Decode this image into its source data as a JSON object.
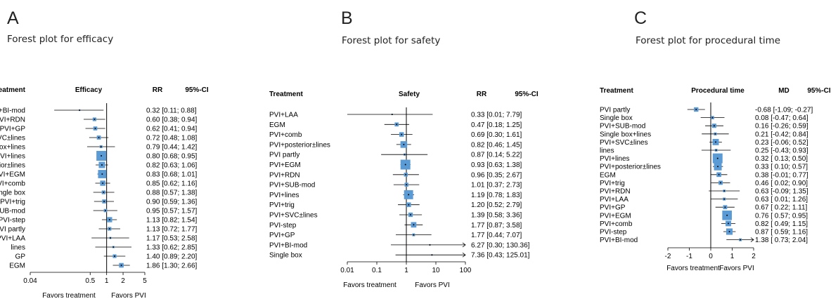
{
  "panels": [
    {
      "letter": "A",
      "title": "Forest plot for efficacy"
    },
    {
      "letter": "B",
      "title": "Forest plot for safety"
    },
    {
      "letter": "C",
      "title": "Forest plot for procedural time"
    }
  ],
  "chart_data": [
    {
      "type": "forest",
      "headers": {
        "treatment": "Treatment",
        "outcome": "Efficacy",
        "measure": "RR",
        "ci": "95%-CI"
      },
      "scale": "log",
      "xlim": [
        0.04,
        5
      ],
      "ticks": [
        0.04,
        0.5,
        1,
        2,
        5
      ],
      "tick_labels": [
        "0.04",
        "0.5",
        "1",
        "2",
        "5"
      ],
      "xlabel_left": "Favors treatment",
      "xlabel_right": "Favors PVI",
      "rows": [
        {
          "label": "PVI+BI-mod",
          "est": 0.32,
          "lo": 0.11,
          "hi": 0.88,
          "text": "0.32 [0.11; 0.88]"
        },
        {
          "label": "PVI+RDN",
          "est": 0.6,
          "lo": 0.38,
          "hi": 0.94,
          "text": "0.60 [0.38; 0.94]"
        },
        {
          "label": "PVI+GP",
          "est": 0.62,
          "lo": 0.41,
          "hi": 0.94,
          "text": "0.62 [0.41; 0.94]"
        },
        {
          "label": "PVI+SVC±lines",
          "est": 0.72,
          "lo": 0.48,
          "hi": 1.08,
          "text": "0.72 [0.48; 1.08]"
        },
        {
          "label": "Single box+lines",
          "est": 0.79,
          "lo": 0.44,
          "hi": 1.42,
          "text": "0.79 [0.44; 1.42]"
        },
        {
          "label": "PVI+lines",
          "est": 0.8,
          "lo": 0.68,
          "hi": 0.95,
          "text": "0.80 [0.68; 0.95]"
        },
        {
          "label": "PVI+posterior±lines",
          "est": 0.82,
          "lo": 0.63,
          "hi": 1.06,
          "text": "0.82 [0.63; 1.06]"
        },
        {
          "label": "PVI+EGM",
          "est": 0.83,
          "lo": 0.68,
          "hi": 1.01,
          "text": "0.83 [0.68; 1.01]"
        },
        {
          "label": "PVI+comb",
          "est": 0.85,
          "lo": 0.62,
          "hi": 1.16,
          "text": "0.85 [0.62; 1.16]"
        },
        {
          "label": "Single box",
          "est": 0.88,
          "lo": 0.57,
          "hi": 1.38,
          "text": "0.88 [0.57; 1.38]"
        },
        {
          "label": "PVI+trig",
          "est": 0.9,
          "lo": 0.59,
          "hi": 1.36,
          "text": "0.90 [0.59; 1.36]"
        },
        {
          "label": "PVI+SUB-mod",
          "est": 0.95,
          "lo": 0.57,
          "hi": 1.57,
          "text": "0.95 [0.57; 1.57]"
        },
        {
          "label": "PVI-step",
          "est": 1.13,
          "lo": 0.82,
          "hi": 1.54,
          "text": "1.13 [0.82; 1.54]"
        },
        {
          "label": "PVI partly",
          "est": 1.13,
          "lo": 0.72,
          "hi": 1.77,
          "text": "1.13 [0.72; 1.77]"
        },
        {
          "label": "PVI+LAA",
          "est": 1.17,
          "lo": 0.53,
          "hi": 2.58,
          "text": "1.17 [0.53; 2.58]"
        },
        {
          "label": "lines",
          "est": 1.33,
          "lo": 0.62,
          "hi": 2.85,
          "text": "1.33 [0.62; 2.85]"
        },
        {
          "label": "GP",
          "est": 1.4,
          "lo": 0.89,
          "hi": 2.2,
          "text": "1.40 [0.89; 2.20]"
        },
        {
          "label": "EGM",
          "est": 1.86,
          "lo": 1.3,
          "hi": 2.66,
          "text": "1.86 [1.30; 2.66]"
        }
      ]
    },
    {
      "type": "forest",
      "headers": {
        "treatment": "Treatment",
        "outcome": "Safety",
        "measure": "RR",
        "ci": "95%-CI"
      },
      "scale": "log",
      "xlim": [
        0.01,
        100
      ],
      "ticks": [
        0.01,
        0.1,
        1,
        10,
        100
      ],
      "tick_labels": [
        "0.01",
        "0.1",
        "1",
        "10",
        "100"
      ],
      "xlabel_left": "Favors treatment",
      "xlabel_right": "Favors PVI",
      "rows": [
        {
          "label": "PVI+LAA",
          "est": 0.33,
          "lo": 0.01,
          "hi": 7.79,
          "text": "0.33  [0.01;    7.79]"
        },
        {
          "label": "EGM",
          "est": 0.47,
          "lo": 0.18,
          "hi": 1.25,
          "text": "0.47  [0.18;    1.25]"
        },
        {
          "label": "PVI+comb",
          "est": 0.69,
          "lo": 0.3,
          "hi": 1.61,
          "text": "0.69  [0.30;    1.61]"
        },
        {
          "label": "PVI+posterior±lines",
          "est": 0.82,
          "lo": 0.46,
          "hi": 1.45,
          "text": "0.82  [0.46;    1.45]"
        },
        {
          "label": "PVI partly",
          "est": 0.87,
          "lo": 0.14,
          "hi": 5.22,
          "text": "0.87  [0.14;    5.22]"
        },
        {
          "label": "PVI+EGM",
          "est": 0.93,
          "lo": 0.63,
          "hi": 1.38,
          "text": "0.93  [0.63;    1.38]"
        },
        {
          "label": "PVI+RDN",
          "est": 0.96,
          "lo": 0.35,
          "hi": 2.67,
          "text": "0.96  [0.35;    2.67]"
        },
        {
          "label": "PVI+SUB-mod",
          "est": 1.01,
          "lo": 0.37,
          "hi": 2.73,
          "text": "1.01  [0.37;    2.73]"
        },
        {
          "label": "PVI+lines",
          "est": 1.19,
          "lo": 0.78,
          "hi": 1.83,
          "text": "1.19  [0.78;    1.83]"
        },
        {
          "label": "PVI+trig",
          "est": 1.2,
          "lo": 0.52,
          "hi": 2.79,
          "text": "1.20  [0.52;    2.79]"
        },
        {
          "label": "PVI+SVC±lines",
          "est": 1.39,
          "lo": 0.58,
          "hi": 3.36,
          "text": "1.39  [0.58;    3.36]"
        },
        {
          "label": "PVI-step",
          "est": 1.77,
          "lo": 0.87,
          "hi": 3.58,
          "text": "1.77  [0.87;    3.58]"
        },
        {
          "label": "PVI+GP",
          "est": 1.77,
          "lo": 0.44,
          "hi": 7.07,
          "text": "1.77  [0.44;    7.07]"
        },
        {
          "label": "PVI+BI-mod",
          "est": 6.27,
          "lo": 0.3,
          "hi": 130.36,
          "text": "6.27  [0.30; 130.36]"
        },
        {
          "label": "Single box",
          "est": 7.36,
          "lo": 0.43,
          "hi": 125.01,
          "text": "7.36  [0.43; 125.01]"
        }
      ]
    },
    {
      "type": "forest",
      "headers": {
        "treatment": "Treatment",
        "outcome": "Procedural time",
        "measure": "MD",
        "ci": "95%-CI"
      },
      "scale": "linear",
      "xlim": [
        -2,
        2
      ],
      "ticks": [
        -2,
        -1,
        0,
        1,
        2
      ],
      "tick_labels": [
        "-2",
        "-1",
        "0",
        "1",
        "2"
      ],
      "xlabel_left": "Favors treatment",
      "xlabel_right": "Favors PVI",
      "rows": [
        {
          "label": "PVI partly",
          "est": -0.68,
          "lo": -1.09,
          "hi": -0.27,
          "text": "-0.68 [-1.09; -0.27]"
        },
        {
          "label": "Single box",
          "est": 0.08,
          "lo": -0.47,
          "hi": 0.64,
          "text": "0.08 [-0.47; 0.64]"
        },
        {
          "label": "PVI+SUB-mod",
          "est": 0.16,
          "lo": -0.26,
          "hi": 0.59,
          "text": "0.16 [-0.26; 0.59]"
        },
        {
          "label": "Single box+lines",
          "est": 0.21,
          "lo": -0.42,
          "hi": 0.84,
          "text": "0.21 [-0.42; 0.84]"
        },
        {
          "label": "PVI+SVC±lines",
          "est": 0.23,
          "lo": -0.06,
          "hi": 0.52,
          "text": "0.23 [-0.06; 0.52]"
        },
        {
          "label": "lines",
          "est": 0.25,
          "lo": -0.43,
          "hi": 0.93,
          "text": "0.25 [-0.43; 0.93]"
        },
        {
          "label": "PVI+lines",
          "est": 0.32,
          "lo": 0.13,
          "hi": 0.5,
          "text": "0.32 [ 0.13; 0.50]"
        },
        {
          "label": "PVI+posterior±lines",
          "est": 0.33,
          "lo": 0.1,
          "hi": 0.57,
          "text": "0.33 [ 0.10; 0.57]"
        },
        {
          "label": "EGM",
          "est": 0.38,
          "lo": -0.01,
          "hi": 0.77,
          "text": "0.38 [-0.01; 0.77]"
        },
        {
          "label": "PVI+trig",
          "est": 0.46,
          "lo": 0.02,
          "hi": 0.9,
          "text": "0.46 [ 0.02; 0.90]"
        },
        {
          "label": "PVI+RDN",
          "est": 0.63,
          "lo": -0.09,
          "hi": 1.35,
          "text": "0.63 [-0.09; 1.35]"
        },
        {
          "label": "PVI+LAA",
          "est": 0.63,
          "lo": 0.01,
          "hi": 1.26,
          "text": "0.63 [ 0.01; 1.26]"
        },
        {
          "label": "PVI+GP",
          "est": 0.67,
          "lo": 0.22,
          "hi": 1.11,
          "text": "0.67 [ 0.22; 1.11]"
        },
        {
          "label": "PVI+EGM",
          "est": 0.76,
          "lo": 0.57,
          "hi": 0.95,
          "text": "0.76 [ 0.57; 0.95]"
        },
        {
          "label": "PVI+comb",
          "est": 0.82,
          "lo": 0.49,
          "hi": 1.15,
          "text": "0.82 [ 0.49; 1.15]"
        },
        {
          "label": "PVI-step",
          "est": 0.87,
          "lo": 0.59,
          "hi": 1.16,
          "text": "0.87 [ 0.59; 1.16]"
        },
        {
          "label": "PVI+BI-mod",
          "est": 1.38,
          "lo": 0.73,
          "hi": 2.04,
          "text": "1.38 [ 0.73; 2.04]"
        }
      ]
    }
  ],
  "colors": {
    "box": "#5b9bd5",
    "line": "#000000",
    "ref": "#000000"
  }
}
